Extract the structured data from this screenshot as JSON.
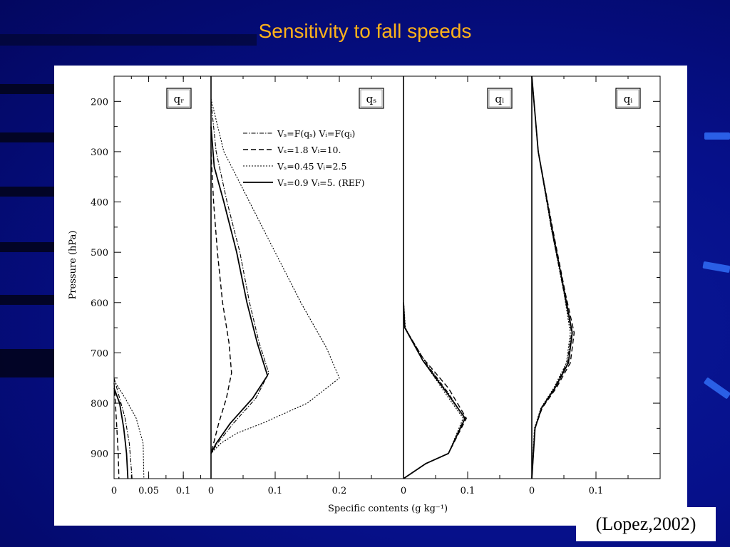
{
  "slide": {
    "title": "Sensitivity to fall speeds",
    "citation": "(Lopez,2002)"
  },
  "colors": {
    "background": "#06108a",
    "title": "#ffb21a",
    "panel": "#ffffff",
    "ink": "#000000"
  },
  "chart_data": {
    "type": "line",
    "ylabel": "Pressure (hPa)",
    "xlabel": "Specific contents (g kg⁻¹)",
    "ylim": [
      150,
      950
    ],
    "y_inverted": true,
    "yticks": [
      200,
      300,
      400,
      500,
      600,
      700,
      800,
      900
    ],
    "legend": {
      "panel": "qs",
      "placement": "top-center",
      "entries": [
        {
          "label": "Vₛ=F(qₛ)  Vᵢ=F(qᵢ)",
          "style": "dashdot"
        },
        {
          "label": "Vₛ=1.8   Vᵢ=10.",
          "style": "dashed"
        },
        {
          "label": "Vₛ=0.45  Vᵢ=2.5",
          "style": "dotted"
        },
        {
          "label": "Vₛ=0.9   Vᵢ=5. (REF)",
          "style": "solid"
        }
      ]
    },
    "panels": [
      {
        "name": "qr",
        "label": "qᵣ",
        "xlim": [
          0,
          0.14
        ],
        "xticks": [
          "0",
          "0.05",
          "0.1"
        ],
        "xtick_values": [
          0,
          0.05,
          0.1
        ],
        "series": [
          {
            "style": "dashdot",
            "points": [
              [
                0,
                750
              ],
              [
                0.008,
                790
              ],
              [
                0.016,
                830
              ],
              [
                0.022,
                880
              ],
              [
                0.026,
                950
              ]
            ]
          },
          {
            "style": "dashed",
            "points": [
              [
                0,
                760
              ],
              [
                0.002,
                800
              ],
              [
                0.004,
                850
              ],
              [
                0.006,
                900
              ],
              [
                0.007,
                950
              ]
            ]
          },
          {
            "style": "dotted",
            "points": [
              [
                0,
                755
              ],
              [
                0.016,
                790
              ],
              [
                0.032,
                830
              ],
              [
                0.042,
                880
              ],
              [
                0.043,
                950
              ]
            ]
          },
          {
            "style": "solid",
            "points": [
              [
                0,
                770
              ],
              [
                0.008,
                800
              ],
              [
                0.014,
                850
              ],
              [
                0.018,
                900
              ],
              [
                0.02,
                950
              ]
            ]
          }
        ]
      },
      {
        "name": "qs",
        "label": "qₛ",
        "xlim": [
          0,
          0.3
        ],
        "xticks": [
          "0",
          "0.1",
          "0.2"
        ],
        "xtick_values": [
          0,
          0.1,
          0.2
        ],
        "series": [
          {
            "style": "dashdot",
            "points": [
              [
                0,
                200
              ],
              [
                0.008,
                300
              ],
              [
                0.025,
                400
              ],
              [
                0.045,
                500
              ],
              [
                0.06,
                600
              ],
              [
                0.075,
                680
              ],
              [
                0.09,
                740
              ],
              [
                0.07,
                790
              ],
              [
                0.035,
                840
              ],
              [
                0.01,
                880
              ],
              [
                0,
                900
              ]
            ]
          },
          {
            "style": "dashed",
            "points": [
              [
                0,
                300
              ],
              [
                0.004,
                400
              ],
              [
                0.01,
                500
              ],
              [
                0.018,
                600
              ],
              [
                0.028,
                680
              ],
              [
                0.032,
                740
              ],
              [
                0.024,
                790
              ],
              [
                0.012,
                840
              ],
              [
                0.004,
                880
              ],
              [
                0,
                900
              ]
            ]
          },
          {
            "style": "dotted",
            "points": [
              [
                0,
                195
              ],
              [
                0.02,
                300
              ],
              [
                0.06,
                400
              ],
              [
                0.1,
                500
              ],
              [
                0.14,
                600
              ],
              [
                0.18,
                690
              ],
              [
                0.2,
                750
              ],
              [
                0.15,
                800
              ],
              [
                0.08,
                840
              ],
              [
                0.04,
                860
              ],
              [
                0.015,
                880
              ],
              [
                0,
                900
              ]
            ]
          },
          {
            "style": "solid",
            "points": [
              [
                0,
                250
              ],
              [
                0.005,
                330
              ],
              [
                0.02,
                400
              ],
              [
                0.04,
                500
              ],
              [
                0.056,
                600
              ],
              [
                0.072,
                680
              ],
              [
                0.088,
                745
              ],
              [
                0.065,
                790
              ],
              [
                0.03,
                840
              ],
              [
                0.008,
                880
              ],
              [
                0,
                900
              ]
            ]
          }
        ]
      },
      {
        "name": "ql",
        "label": "qₗ",
        "xlim": [
          0,
          0.2
        ],
        "xticks": [
          "0",
          "0.1"
        ],
        "xtick_values": [
          0,
          0.1
        ],
        "series": [
          {
            "style": "dashdot",
            "points": [
              [
                0,
                600
              ],
              [
                0.002,
                650
              ],
              [
                0.035,
                720
              ],
              [
                0.07,
                780
              ],
              [
                0.095,
                830
              ],
              [
                0.07,
                900
              ],
              [
                0.035,
                920
              ],
              [
                0,
                950
              ]
            ]
          },
          {
            "style": "dashed",
            "points": [
              [
                0,
                600
              ],
              [
                0.002,
                650
              ],
              [
                0.03,
                710
              ],
              [
                0.07,
                770
              ],
              [
                0.098,
                830
              ],
              [
                0.07,
                900
              ],
              [
                0.035,
                920
              ],
              [
                0,
                950
              ]
            ]
          },
          {
            "style": "dotted",
            "points": [
              [
                0,
                595
              ],
              [
                0.003,
                650
              ],
              [
                0.03,
                715
              ],
              [
                0.065,
                780
              ],
              [
                0.093,
                830
              ],
              [
                0.07,
                900
              ],
              [
                0.035,
                920
              ],
              [
                0,
                950
              ]
            ]
          },
          {
            "style": "solid",
            "points": [
              [
                0,
                600
              ],
              [
                0.002,
                650
              ],
              [
                0.03,
                715
              ],
              [
                0.068,
                780
              ],
              [
                0.096,
                830
              ],
              [
                0.07,
                900
              ],
              [
                0.035,
                920
              ],
              [
                0,
                950
              ]
            ]
          }
        ]
      },
      {
        "name": "qi",
        "label": "qᵢ",
        "xlim": [
          0,
          0.2
        ],
        "xticks": [
          "0",
          "0.1"
        ],
        "xtick_values": [
          0,
          0.1
        ],
        "series": [
          {
            "style": "dashdot",
            "points": [
              [
                0,
                150
              ],
              [
                0.01,
                300
              ],
              [
                0.03,
                450
              ],
              [
                0.05,
                580
              ],
              [
                0.062,
                660
              ],
              [
                0.055,
                720
              ],
              [
                0.035,
                770
              ],
              [
                0.015,
                810
              ],
              [
                0.005,
                850
              ],
              [
                0,
                950
              ]
            ]
          },
          {
            "style": "dashed",
            "points": [
              [
                0,
                150
              ],
              [
                0.01,
                300
              ],
              [
                0.032,
                450
              ],
              [
                0.052,
                580
              ],
              [
                0.066,
                660
              ],
              [
                0.06,
                720
              ],
              [
                0.038,
                770
              ],
              [
                0.016,
                810
              ],
              [
                0.005,
                850
              ],
              [
                0,
                950
              ]
            ]
          },
          {
            "style": "dotted",
            "points": [
              [
                0,
                150
              ],
              [
                0.01,
                300
              ],
              [
                0.03,
                450
              ],
              [
                0.05,
                580
              ],
              [
                0.06,
                660
              ],
              [
                0.054,
                720
              ],
              [
                0.034,
                770
              ],
              [
                0.014,
                810
              ],
              [
                0.004,
                850
              ],
              [
                0,
                950
              ]
            ]
          },
          {
            "style": "solid",
            "points": [
              [
                0,
                150
              ],
              [
                0.01,
                300
              ],
              [
                0.031,
                450
              ],
              [
                0.051,
                580
              ],
              [
                0.063,
                660
              ],
              [
                0.057,
                720
              ],
              [
                0.036,
                770
              ],
              [
                0.015,
                810
              ],
              [
                0.005,
                850
              ],
              [
                0,
                950
              ]
            ]
          }
        ]
      }
    ]
  }
}
